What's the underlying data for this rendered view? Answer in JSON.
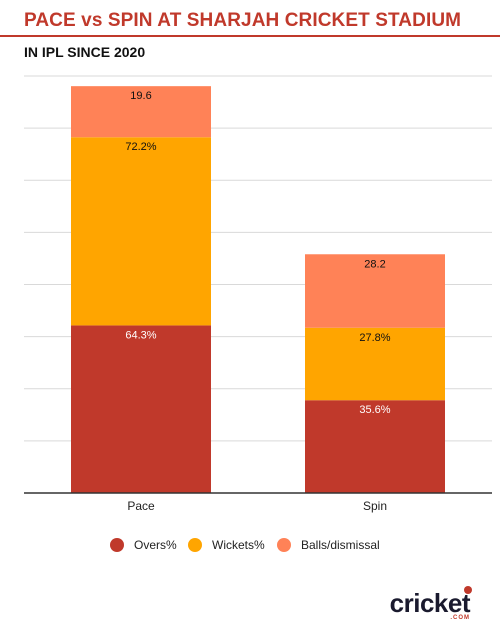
{
  "header": {
    "title": "PACE vs SPIN AT SHARJAH CRICKET STADIUM",
    "subtitle": "IN IPL SINCE 2020"
  },
  "colors": {
    "title": "#c0392b",
    "overs": "#c0392b",
    "wickets": "#ffa500",
    "balls": "#ff8257",
    "gridline": "#d9d9d9",
    "axis": "#333333"
  },
  "chart_data": {
    "type": "bar",
    "stacked": true,
    "categories": [
      "Pace",
      "Spin"
    ],
    "series": [
      {
        "name": "Overs%",
        "values": [
          64.3,
          35.6
        ],
        "labels": [
          "64.3%",
          "35.6%"
        ]
      },
      {
        "name": "Wickets%",
        "values": [
          72.2,
          27.8
        ],
        "labels": [
          "72.2%",
          "27.8%"
        ]
      },
      {
        "name": "Balls/dismissal",
        "values": [
          19.6,
          28.2
        ],
        "labels": [
          "19.6",
          "28.2"
        ]
      }
    ],
    "ylim": [
      0,
      160
    ],
    "y_gridline_step": 20,
    "grid": true,
    "y_tick_labels_shown": false,
    "legend_position": "bottom"
  },
  "logo": {
    "text": "cricket",
    "subtext": ".COM"
  }
}
